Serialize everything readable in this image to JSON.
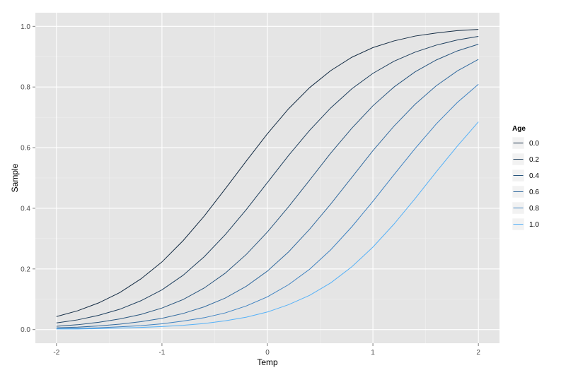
{
  "chart_data": {
    "type": "line",
    "xlabel": "Temp",
    "ylabel": "Sample",
    "xlim": [
      -2.2,
      2.2
    ],
    "ylim": [
      -0.045,
      1.045
    ],
    "x_ticks": [
      -2,
      -1,
      0,
      1,
      2
    ],
    "x_tick_labels": [
      "-2",
      "-1",
      "0",
      "1",
      "2"
    ],
    "y_ticks": [
      0.0,
      0.2,
      0.4,
      0.6,
      0.8,
      1.0
    ],
    "y_tick_labels": [
      "0.0",
      "0.2",
      "0.4",
      "0.6",
      "0.8",
      "1.0"
    ],
    "grid": true,
    "legend": {
      "title": "Age",
      "placement": "right"
    },
    "x": [
      -2.0,
      -1.8,
      -1.6,
      -1.4,
      -1.2,
      -1.0,
      -0.8,
      -0.6,
      -0.4,
      -0.2,
      0.0,
      0.2,
      0.4,
      0.6,
      0.8,
      1.0,
      1.2,
      1.4,
      1.6,
      1.8,
      2.0
    ],
    "series": [
      {
        "name": "0.0",
        "color": "#132b43",
        "values": [
          0.043,
          0.062,
          0.088,
          0.122,
          0.167,
          0.223,
          0.293,
          0.374,
          0.464,
          0.556,
          0.646,
          0.728,
          0.798,
          0.854,
          0.898,
          0.93,
          0.952,
          0.968,
          0.978,
          0.986,
          0.99
        ]
      },
      {
        "name": "0.2",
        "color": "#1e3f5e",
        "values": [
          0.022,
          0.032,
          0.047,
          0.067,
          0.095,
          0.131,
          0.179,
          0.24,
          0.313,
          0.396,
          0.485,
          0.574,
          0.657,
          0.731,
          0.794,
          0.845,
          0.885,
          0.915,
          0.938,
          0.955,
          0.967
        ]
      },
      {
        "name": "0.4",
        "color": "#28557e",
        "values": [
          0.011,
          0.016,
          0.024,
          0.035,
          0.05,
          0.071,
          0.099,
          0.137,
          0.186,
          0.248,
          0.322,
          0.405,
          0.493,
          0.582,
          0.664,
          0.738,
          0.8,
          0.85,
          0.889,
          0.919,
          0.941
        ]
      },
      {
        "name": "0.6",
        "color": "#336b9f",
        "values": [
          0.006,
          0.008,
          0.012,
          0.018,
          0.026,
          0.037,
          0.053,
          0.075,
          0.104,
          0.143,
          0.193,
          0.256,
          0.331,
          0.414,
          0.502,
          0.59,
          0.671,
          0.743,
          0.804,
          0.853,
          0.891
        ]
      },
      {
        "name": "0.8",
        "color": "#3e82c1",
        "values": [
          0.003,
          0.004,
          0.006,
          0.009,
          0.013,
          0.019,
          0.028,
          0.039,
          0.055,
          0.078,
          0.108,
          0.148,
          0.199,
          0.263,
          0.339,
          0.423,
          0.511,
          0.597,
          0.678,
          0.749,
          0.809
        ]
      },
      {
        "name": "1.0",
        "color": "#56b1f7",
        "values": [
          0.002,
          0.002,
          0.003,
          0.005,
          0.007,
          0.01,
          0.014,
          0.02,
          0.029,
          0.041,
          0.058,
          0.082,
          0.113,
          0.154,
          0.207,
          0.272,
          0.348,
          0.432,
          0.52,
          0.605,
          0.685
        ]
      }
    ]
  }
}
